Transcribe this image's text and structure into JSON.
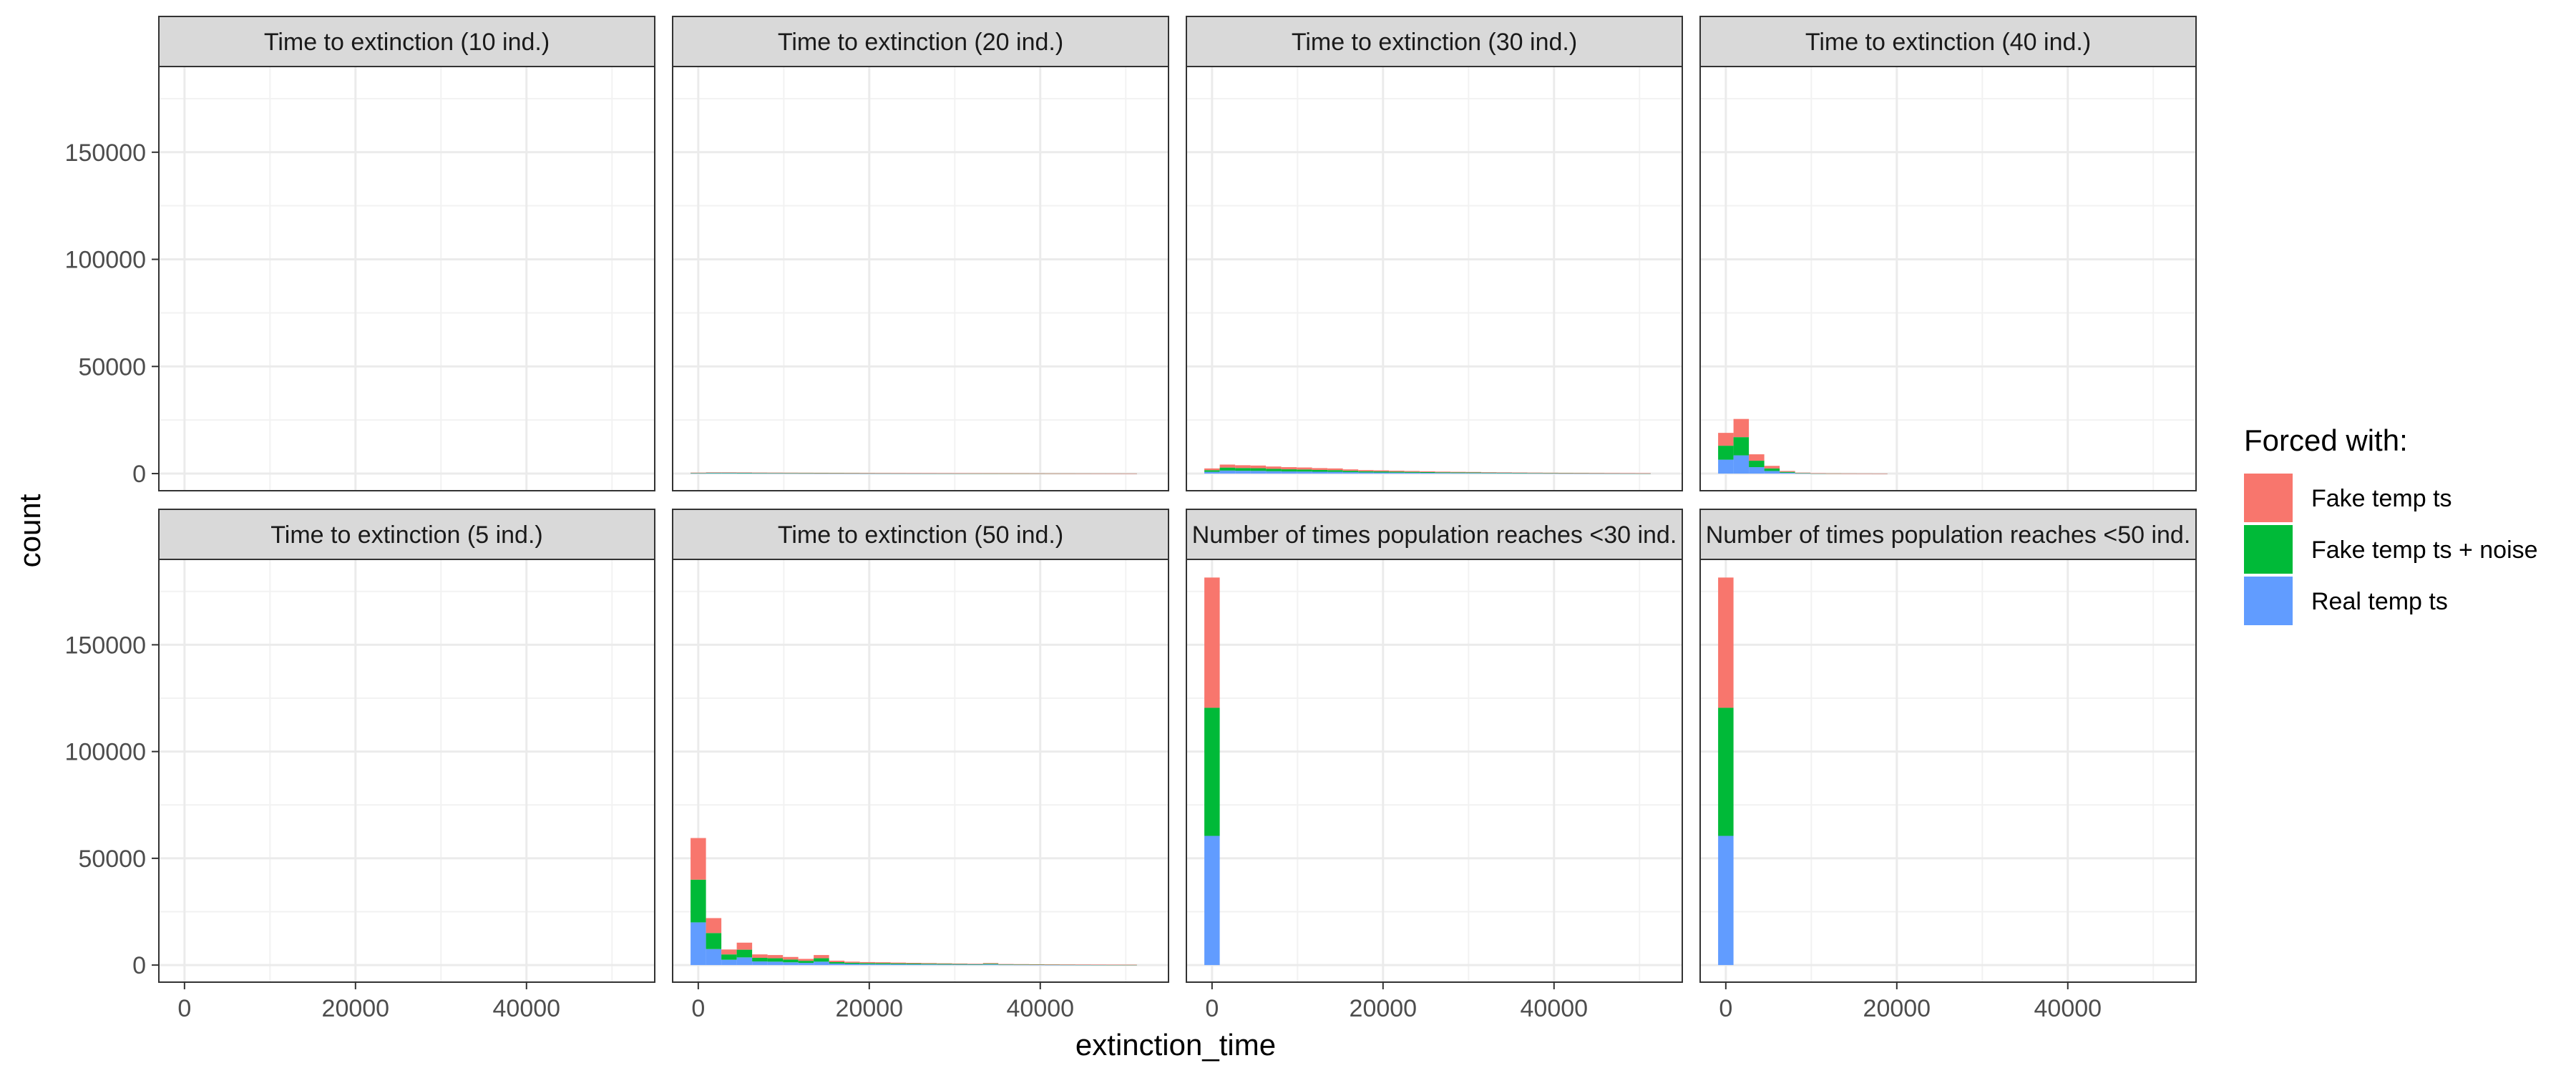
{
  "chart_data": {
    "type": "bar",
    "stacked": true,
    "facet_layout": {
      "rows": 2,
      "cols": 4
    },
    "xlabel": "extinction_time",
    "ylabel": "count",
    "xlim": [
      -3000,
      55000
    ],
    "ylim": [
      -8000,
      190000
    ],
    "x_ticks": [
      0,
      20000,
      40000
    ],
    "y_ticks": [
      0,
      50000,
      100000,
      150000
    ],
    "bin_width": 1800,
    "grid": true,
    "legend": {
      "title": "Forced with:",
      "position": "right",
      "entries": [
        {
          "name": "Fake temp ts",
          "color": "#F8766D"
        },
        {
          "name": "Fake temp ts + noise",
          "color": "#00BA38"
        },
        {
          "name": "Real temp ts",
          "color": "#619CFF"
        }
      ]
    },
    "series_order": [
      "Real temp ts",
      "Fake temp ts + noise",
      "Fake temp ts"
    ],
    "colors": {
      "Fake temp ts": "#F8766D",
      "Fake temp ts + noise": "#00BA38",
      "Real temp ts": "#619CFF"
    },
    "panels": [
      {
        "title": "Time to extinction (10 ind.)",
        "bins": []
      },
      {
        "title": "Time to extinction (20 ind.)",
        "bins": [
          {
            "x": 0,
            "Real temp ts": 150,
            "Fake temp ts + noise": 150,
            "Fake temp ts": 150
          },
          {
            "x": 1800,
            "Real temp ts": 200,
            "Fake temp ts + noise": 200,
            "Fake temp ts": 200
          },
          {
            "x": 3600,
            "Real temp ts": 200,
            "Fake temp ts + noise": 200,
            "Fake temp ts": 200
          },
          {
            "x": 5400,
            "Real temp ts": 180,
            "Fake temp ts + noise": 180,
            "Fake temp ts": 180
          },
          {
            "x": 7200,
            "Real temp ts": 160,
            "Fake temp ts + noise": 160,
            "Fake temp ts": 160
          },
          {
            "x": 9000,
            "Real temp ts": 150,
            "Fake temp ts + noise": 150,
            "Fake temp ts": 150
          },
          {
            "x": 10800,
            "Real temp ts": 140,
            "Fake temp ts + noise": 140,
            "Fake temp ts": 140
          },
          {
            "x": 12600,
            "Real temp ts": 130,
            "Fake temp ts + noise": 130,
            "Fake temp ts": 130
          },
          {
            "x": 14400,
            "Real temp ts": 120,
            "Fake temp ts + noise": 120,
            "Fake temp ts": 120
          },
          {
            "x": 16200,
            "Real temp ts": 110,
            "Fake temp ts + noise": 110,
            "Fake temp ts": 110
          },
          {
            "x": 18000,
            "Real temp ts": 100,
            "Fake temp ts + noise": 100,
            "Fake temp ts": 100
          },
          {
            "x": 19800,
            "Real temp ts": 90,
            "Fake temp ts + noise": 90,
            "Fake temp ts": 90
          },
          {
            "x": 21600,
            "Real temp ts": 85,
            "Fake temp ts + noise": 85,
            "Fake temp ts": 85
          },
          {
            "x": 23400,
            "Real temp ts": 80,
            "Fake temp ts + noise": 80,
            "Fake temp ts": 80
          },
          {
            "x": 25200,
            "Real temp ts": 75,
            "Fake temp ts + noise": 75,
            "Fake temp ts": 75
          },
          {
            "x": 27000,
            "Real temp ts": 70,
            "Fake temp ts + noise": 70,
            "Fake temp ts": 70
          },
          {
            "x": 28800,
            "Real temp ts": 65,
            "Fake temp ts + noise": 65,
            "Fake temp ts": 65
          },
          {
            "x": 30600,
            "Real temp ts": 60,
            "Fake temp ts + noise": 60,
            "Fake temp ts": 60
          },
          {
            "x": 32400,
            "Real temp ts": 55,
            "Fake temp ts + noise": 55,
            "Fake temp ts": 55
          },
          {
            "x": 34200,
            "Real temp ts": 50,
            "Fake temp ts + noise": 50,
            "Fake temp ts": 50
          },
          {
            "x": 36000,
            "Real temp ts": 45,
            "Fake temp ts + noise": 45,
            "Fake temp ts": 45
          },
          {
            "x": 37800,
            "Real temp ts": 40,
            "Fake temp ts + noise": 40,
            "Fake temp ts": 40
          },
          {
            "x": 39600,
            "Real temp ts": 35,
            "Fake temp ts + noise": 35,
            "Fake temp ts": 35
          },
          {
            "x": 41400,
            "Real temp ts": 30,
            "Fake temp ts + noise": 30,
            "Fake temp ts": 30
          },
          {
            "x": 43200,
            "Real temp ts": 28,
            "Fake temp ts + noise": 28,
            "Fake temp ts": 28
          },
          {
            "x": 45000,
            "Real temp ts": 25,
            "Fake temp ts + noise": 25,
            "Fake temp ts": 25
          },
          {
            "x": 46800,
            "Real temp ts": 22,
            "Fake temp ts + noise": 22,
            "Fake temp ts": 22
          },
          {
            "x": 48600,
            "Real temp ts": 20,
            "Fake temp ts + noise": 20,
            "Fake temp ts": 20
          },
          {
            "x": 50400,
            "Real temp ts": 18,
            "Fake temp ts + noise": 18,
            "Fake temp ts": 18
          }
        ]
      },
      {
        "title": "Time to extinction (30 ind.)",
        "bins": [
          {
            "x": 0,
            "Real temp ts": 800,
            "Fake temp ts + noise": 800,
            "Fake temp ts": 800
          },
          {
            "x": 1800,
            "Real temp ts": 1400,
            "Fake temp ts + noise": 1400,
            "Fake temp ts": 1400
          },
          {
            "x": 3600,
            "Real temp ts": 1300,
            "Fake temp ts + noise": 1300,
            "Fake temp ts": 1300
          },
          {
            "x": 5400,
            "Real temp ts": 1250,
            "Fake temp ts + noise": 1250,
            "Fake temp ts": 1250
          },
          {
            "x": 7200,
            "Real temp ts": 1100,
            "Fake temp ts + noise": 1100,
            "Fake temp ts": 1100
          },
          {
            "x": 9000,
            "Real temp ts": 1000,
            "Fake temp ts + noise": 1000,
            "Fake temp ts": 1000
          },
          {
            "x": 10800,
            "Real temp ts": 950,
            "Fake temp ts + noise": 950,
            "Fake temp ts": 950
          },
          {
            "x": 12600,
            "Real temp ts": 850,
            "Fake temp ts + noise": 850,
            "Fake temp ts": 850
          },
          {
            "x": 14400,
            "Real temp ts": 800,
            "Fake temp ts + noise": 800,
            "Fake temp ts": 800
          },
          {
            "x": 16200,
            "Real temp ts": 650,
            "Fake temp ts + noise": 650,
            "Fake temp ts": 650
          },
          {
            "x": 18000,
            "Real temp ts": 550,
            "Fake temp ts + noise": 550,
            "Fake temp ts": 550
          },
          {
            "x": 19800,
            "Real temp ts": 500,
            "Fake temp ts + noise": 500,
            "Fake temp ts": 500
          },
          {
            "x": 21600,
            "Real temp ts": 450,
            "Fake temp ts + noise": 450,
            "Fake temp ts": 450
          },
          {
            "x": 23400,
            "Real temp ts": 400,
            "Fake temp ts + noise": 400,
            "Fake temp ts": 400
          },
          {
            "x": 25200,
            "Real temp ts": 350,
            "Fake temp ts + noise": 350,
            "Fake temp ts": 350
          },
          {
            "x": 27000,
            "Real temp ts": 300,
            "Fake temp ts + noise": 300,
            "Fake temp ts": 300
          },
          {
            "x": 28800,
            "Real temp ts": 270,
            "Fake temp ts + noise": 270,
            "Fake temp ts": 270
          },
          {
            "x": 30600,
            "Real temp ts": 250,
            "Fake temp ts + noise": 250,
            "Fake temp ts": 250
          },
          {
            "x": 32400,
            "Real temp ts": 220,
            "Fake temp ts + noise": 220,
            "Fake temp ts": 220
          },
          {
            "x": 34200,
            "Real temp ts": 200,
            "Fake temp ts + noise": 200,
            "Fake temp ts": 200
          },
          {
            "x": 36000,
            "Real temp ts": 170,
            "Fake temp ts + noise": 170,
            "Fake temp ts": 170
          },
          {
            "x": 37800,
            "Real temp ts": 150,
            "Fake temp ts + noise": 150,
            "Fake temp ts": 150
          },
          {
            "x": 39600,
            "Real temp ts": 130,
            "Fake temp ts + noise": 130,
            "Fake temp ts": 130
          },
          {
            "x": 41400,
            "Real temp ts": 110,
            "Fake temp ts + noise": 110,
            "Fake temp ts": 110
          },
          {
            "x": 43200,
            "Real temp ts": 100,
            "Fake temp ts + noise": 100,
            "Fake temp ts": 100
          },
          {
            "x": 45000,
            "Real temp ts": 90,
            "Fake temp ts + noise": 90,
            "Fake temp ts": 90
          },
          {
            "x": 46800,
            "Real temp ts": 80,
            "Fake temp ts + noise": 80,
            "Fake temp ts": 80
          },
          {
            "x": 48600,
            "Real temp ts": 70,
            "Fake temp ts + noise": 70,
            "Fake temp ts": 70
          },
          {
            "x": 50400,
            "Real temp ts": 60,
            "Fake temp ts + noise": 60,
            "Fake temp ts": 60
          }
        ]
      },
      {
        "title": "Time to extinction (40 ind.)",
        "bins": [
          {
            "x": 0,
            "Real temp ts": 6500,
            "Fake temp ts + noise": 6500,
            "Fake temp ts": 6000
          },
          {
            "x": 1800,
            "Real temp ts": 8500,
            "Fake temp ts + noise": 8500,
            "Fake temp ts": 8500
          },
          {
            "x": 3600,
            "Real temp ts": 3000,
            "Fake temp ts + noise": 3000,
            "Fake temp ts": 3000
          },
          {
            "x": 5400,
            "Real temp ts": 1200,
            "Fake temp ts + noise": 1200,
            "Fake temp ts": 1200
          },
          {
            "x": 7200,
            "Real temp ts": 400,
            "Fake temp ts + noise": 400,
            "Fake temp ts": 400
          },
          {
            "x": 9000,
            "Real temp ts": 150,
            "Fake temp ts + noise": 150,
            "Fake temp ts": 150
          },
          {
            "x": 10800,
            "Real temp ts": 60,
            "Fake temp ts + noise": 60,
            "Fake temp ts": 60
          },
          {
            "x": 12600,
            "Real temp ts": 30,
            "Fake temp ts + noise": 30,
            "Fake temp ts": 30
          },
          {
            "x": 14400,
            "Real temp ts": 20,
            "Fake temp ts + noise": 20,
            "Fake temp ts": 20
          },
          {
            "x": 16200,
            "Real temp ts": 15,
            "Fake temp ts + noise": 15,
            "Fake temp ts": 15
          },
          {
            "x": 18000,
            "Real temp ts": 10,
            "Fake temp ts + noise": 10,
            "Fake temp ts": 10
          }
        ]
      },
      {
        "title": "Time to extinction (5 ind.)",
        "bins": []
      },
      {
        "title": "Time to extinction (50 ind.)",
        "bins": [
          {
            "x": 0,
            "Real temp ts": 20000,
            "Fake temp ts + noise": 20000,
            "Fake temp ts": 19500
          },
          {
            "x": 1800,
            "Real temp ts": 7500,
            "Fake temp ts + noise": 7500,
            "Fake temp ts": 7000
          },
          {
            "x": 3600,
            "Real temp ts": 2500,
            "Fake temp ts + noise": 2500,
            "Fake temp ts": 2300
          },
          {
            "x": 5400,
            "Real temp ts": 3600,
            "Fake temp ts + noise": 3600,
            "Fake temp ts": 3300
          },
          {
            "x": 7200,
            "Real temp ts": 1700,
            "Fake temp ts + noise": 1700,
            "Fake temp ts": 1600
          },
          {
            "x": 9000,
            "Real temp ts": 1600,
            "Fake temp ts + noise": 1600,
            "Fake temp ts": 1500
          },
          {
            "x": 10800,
            "Real temp ts": 1300,
            "Fake temp ts + noise": 1300,
            "Fake temp ts": 1200
          },
          {
            "x": 12600,
            "Real temp ts": 1000,
            "Fake temp ts + noise": 1000,
            "Fake temp ts": 900
          },
          {
            "x": 14400,
            "Real temp ts": 1600,
            "Fake temp ts + noise": 1600,
            "Fake temp ts": 1500
          },
          {
            "x": 16200,
            "Real temp ts": 700,
            "Fake temp ts + noise": 700,
            "Fake temp ts": 650
          },
          {
            "x": 18000,
            "Real temp ts": 550,
            "Fake temp ts + noise": 550,
            "Fake temp ts": 500
          },
          {
            "x": 19800,
            "Real temp ts": 480,
            "Fake temp ts + noise": 480,
            "Fake temp ts": 450
          },
          {
            "x": 21600,
            "Real temp ts": 450,
            "Fake temp ts + noise": 450,
            "Fake temp ts": 420
          },
          {
            "x": 23400,
            "Real temp ts": 400,
            "Fake temp ts + noise": 400,
            "Fake temp ts": 380
          },
          {
            "x": 25200,
            "Real temp ts": 350,
            "Fake temp ts + noise": 350,
            "Fake temp ts": 330
          },
          {
            "x": 27000,
            "Real temp ts": 320,
            "Fake temp ts + noise": 320,
            "Fake temp ts": 300
          },
          {
            "x": 28800,
            "Real temp ts": 280,
            "Fake temp ts + noise": 280,
            "Fake temp ts": 260
          },
          {
            "x": 30600,
            "Real temp ts": 250,
            "Fake temp ts + noise": 250,
            "Fake temp ts": 230
          },
          {
            "x": 32400,
            "Real temp ts": 220,
            "Fake temp ts + noise": 220,
            "Fake temp ts": 200
          },
          {
            "x": 34200,
            "Real temp ts": 320,
            "Fake temp ts + noise": 320,
            "Fake temp ts": 300
          },
          {
            "x": 36000,
            "Real temp ts": 170,
            "Fake temp ts + noise": 170,
            "Fake temp ts": 160
          },
          {
            "x": 37800,
            "Real temp ts": 150,
            "Fake temp ts + noise": 150,
            "Fake temp ts": 140
          },
          {
            "x": 39600,
            "Real temp ts": 130,
            "Fake temp ts + noise": 130,
            "Fake temp ts": 120
          },
          {
            "x": 41400,
            "Real temp ts": 110,
            "Fake temp ts + noise": 110,
            "Fake temp ts": 100
          },
          {
            "x": 43200,
            "Real temp ts": 100,
            "Fake temp ts + noise": 100,
            "Fake temp ts": 90
          },
          {
            "x": 45000,
            "Real temp ts": 90,
            "Fake temp ts + noise": 90,
            "Fake temp ts": 80
          },
          {
            "x": 46800,
            "Real temp ts": 80,
            "Fake temp ts + noise": 80,
            "Fake temp ts": 70
          },
          {
            "x": 48600,
            "Real temp ts": 70,
            "Fake temp ts + noise": 70,
            "Fake temp ts": 60
          },
          {
            "x": 50400,
            "Real temp ts": 60,
            "Fake temp ts + noise": 60,
            "Fake temp ts": 50
          }
        ]
      },
      {
        "title": "Number of times population reaches <30 ind.",
        "bins": [
          {
            "x": 0,
            "Real temp ts": 60500,
            "Fake temp ts + noise": 60000,
            "Fake temp ts": 61000
          }
        ]
      },
      {
        "title": "Number of times population reaches <50 ind.",
        "bins": [
          {
            "x": 0,
            "Real temp ts": 60500,
            "Fake temp ts + noise": 60000,
            "Fake temp ts": 61000
          }
        ]
      }
    ]
  }
}
